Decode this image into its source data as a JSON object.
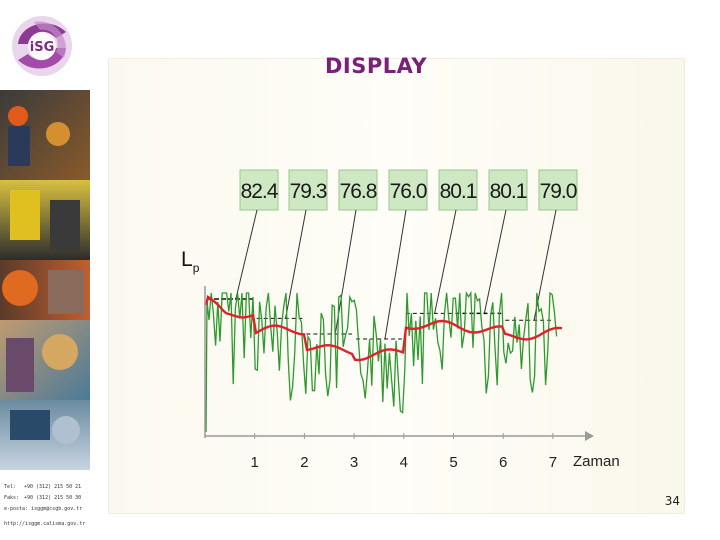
{
  "slide": {
    "title": "DISPLAY",
    "page_number": "34",
    "logo_text": "iSG"
  },
  "contact": {
    "tel_label": "Tel:",
    "tel_value": "+90 (312) 215 50 21",
    "fax_label": "Faks:",
    "fax_value": "+90 (312) 215 50 30",
    "email_label": "e-posta:",
    "email_value": "isggm@csgb.gov.tr",
    "web": "http://isggm.calisma.gov.tr"
  },
  "colors": {
    "title": "#7a1f7a",
    "mean_line": "#e0202a",
    "signal_line": "#2e9a2e",
    "value_box": "#cfe8c4"
  },
  "chart_data": {
    "type": "line",
    "title": "",
    "xlabel": "Zaman",
    "ylabel": "Lp",
    "ylabel_main": "L",
    "ylabel_sub": "p",
    "x_ticks": [
      "1",
      "2",
      "3",
      "4",
      "5",
      "6",
      "7"
    ],
    "interval_values": [
      "82.4",
      "79.3",
      "76.8",
      "76.0",
      "80.1",
      "80.1",
      "79.0"
    ],
    "interval_numeric": [
      82.4,
      79.3,
      76.8,
      76.0,
      80.1,
      80.1,
      79.0
    ],
    "grid": false,
    "legend": "none",
    "series": [
      {
        "role": "fluctuating sound level",
        "color": "#2e9a2e"
      },
      {
        "role": "running average level",
        "color": "#e0202a"
      }
    ]
  }
}
